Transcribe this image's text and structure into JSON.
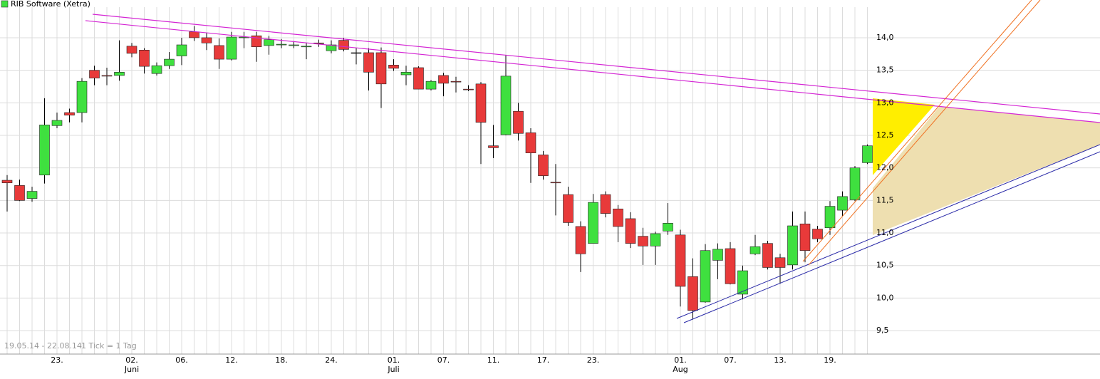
{
  "chart_data": {
    "type": "candlestick",
    "title": "RIB Software (Xetra)",
    "period_label": "19.05.14 - 22.08.14",
    "tick_label": "1 Tick = 1 Tag",
    "categories": [
      null,
      null,
      null,
      null,
      "23.",
      null,
      null,
      null,
      null,
      null,
      "02.",
      null,
      null,
      null,
      "06.",
      null,
      null,
      null,
      "12.",
      null,
      null,
      null,
      "18.",
      null,
      null,
      null,
      "24.",
      null,
      null,
      null,
      null,
      "01.",
      null,
      null,
      null,
      "07.",
      null,
      null,
      null,
      "11.",
      null,
      null,
      null,
      "17.",
      null,
      null,
      null,
      "23.",
      null,
      null,
      null,
      null,
      null,
      null,
      "01.",
      null,
      null,
      null,
      "07.",
      null,
      null,
      null,
      "13.",
      null,
      null,
      null,
      "19.",
      null,
      null,
      null
    ],
    "month_labels": [
      null,
      null,
      null,
      null,
      null,
      null,
      null,
      null,
      null,
      null,
      "Juni",
      null,
      null,
      null,
      null,
      null,
      null,
      null,
      null,
      null,
      null,
      null,
      null,
      null,
      null,
      null,
      null,
      null,
      null,
      null,
      null,
      "Juli",
      null,
      null,
      null,
      null,
      null,
      null,
      null,
      null,
      null,
      null,
      null,
      null,
      null,
      null,
      null,
      null,
      null,
      null,
      null,
      null,
      null,
      null,
      "Aug",
      null,
      null,
      null,
      null,
      null,
      null,
      null,
      null,
      null,
      null,
      null,
      null,
      null,
      null,
      null
    ],
    "open": [
      11.81,
      11.73,
      11.53,
      11.89,
      12.65,
      12.85,
      12.85,
      13.5,
      13.42,
      13.42,
      13.87,
      13.81,
      13.45,
      13.57,
      13.72,
      14.09,
      14.0,
      13.88,
      13.67,
      14.0,
      14.03,
      13.88,
      13.89,
      13.88,
      13.86,
      13.92,
      13.8,
      13.96,
      13.77,
      13.77,
      13.77,
      13.58,
      13.43,
      13.54,
      13.21,
      13.42,
      13.33,
      13.21,
      13.29,
      12.34,
      12.51,
      12.87,
      12.54,
      12.2,
      11.78,
      11.59,
      11.1,
      10.84,
      11.59,
      11.37,
      11.22,
      10.95,
      10.8,
      11.03,
      10.97,
      10.33,
      9.94,
      10.58,
      10.76,
      10.06,
      10.68,
      10.84,
      10.62,
      10.51,
      11.14,
      11.06,
      11.08,
      11.35,
      11.51,
      12.08
    ],
    "high": [
      11.89,
      11.82,
      11.71,
      13.07,
      12.85,
      12.91,
      13.38,
      13.57,
      13.54,
      13.96,
      13.92,
      13.84,
      13.62,
      13.78,
      14.0,
      14.18,
      14.07,
      13.99,
      14.09,
      14.09,
      14.09,
      14.03,
      13.98,
      13.95,
      13.92,
      13.97,
      13.96,
      14.0,
      13.84,
      13.84,
      13.85,
      13.67,
      13.57,
      13.56,
      13.35,
      13.46,
      13.4,
      13.27,
      13.32,
      12.66,
      13.73,
      13.0,
      12.61,
      12.26,
      12.06,
      11.71,
      11.18,
      11.6,
      11.64,
      11.43,
      11.32,
      11.08,
      11.02,
      11.46,
      11.05,
      10.61,
      10.83,
      10.84,
      10.86,
      10.5,
      10.97,
      10.88,
      10.68,
      11.33,
      11.33,
      11.11,
      11.49,
      11.64,
      12.03,
      12.36
    ],
    "low": [
      11.33,
      11.49,
      11.48,
      11.76,
      12.61,
      12.7,
      12.7,
      13.27,
      13.27,
      13.34,
      13.7,
      13.45,
      13.42,
      13.52,
      13.58,
      13.95,
      13.81,
      13.52,
      13.65,
      13.84,
      13.63,
      13.74,
      13.84,
      13.84,
      13.67,
      13.86,
      13.76,
      13.79,
      13.59,
      13.19,
      12.92,
      13.49,
      13.27,
      13.21,
      13.19,
      13.1,
      13.16,
      13.18,
      12.06,
      12.15,
      12.5,
      12.42,
      11.77,
      11.82,
      11.27,
      11.11,
      10.4,
      10.84,
      11.24,
      10.86,
      10.77,
      10.51,
      10.51,
      10.97,
      9.87,
      9.67,
      9.93,
      10.29,
      10.21,
      9.98,
      10.66,
      10.44,
      10.22,
      10.44,
      10.55,
      10.86,
      10.97,
      11.26,
      11.49,
      12.06
    ],
    "close": [
      11.77,
      11.5,
      11.64,
      12.66,
      12.73,
      12.81,
      13.33,
      13.38,
      13.41,
      13.47,
      13.76,
      13.56,
      13.57,
      13.67,
      13.89,
      14.0,
      13.92,
      13.67,
      14.01,
      14.01,
      13.86,
      13.97,
      13.9,
      13.89,
      13.87,
      13.91,
      13.89,
      13.82,
      13.77,
      13.47,
      13.29,
      13.53,
      13.47,
      13.21,
      13.33,
      13.3,
      13.32,
      13.2,
      12.7,
      12.31,
      13.41,
      12.53,
      12.23,
      11.88,
      11.77,
      11.16,
      10.68,
      11.47,
      11.3,
      11.1,
      10.84,
      10.8,
      10.99,
      11.15,
      10.18,
      9.81,
      10.73,
      10.75,
      10.22,
      10.42,
      10.79,
      10.47,
      10.47,
      11.11,
      10.73,
      10.91,
      11.41,
      11.56,
      12.0,
      12.34
    ],
    "up_color": "#3fe03f",
    "down_color": "#e83a3a",
    "ylim": [
      9.14,
      14.47
    ],
    "yticks": [
      {
        "value": 9.5,
        "label": "9,5"
      },
      {
        "value": 10,
        "label": "10,0"
      },
      {
        "value": 10.5,
        "label": "10,5"
      },
      {
        "value": 11,
        "label": "11,0"
      },
      {
        "value": 11.5,
        "label": "11,5"
      },
      {
        "value": 12,
        "label": "12,0"
      },
      {
        "value": 12.5,
        "label": "12,5"
      },
      {
        "value": 13,
        "label": "13,0"
      },
      {
        "value": 13.5,
        "label": "13,5"
      },
      {
        "value": 14,
        "label": "14,0"
      }
    ],
    "grid": true
  }
}
